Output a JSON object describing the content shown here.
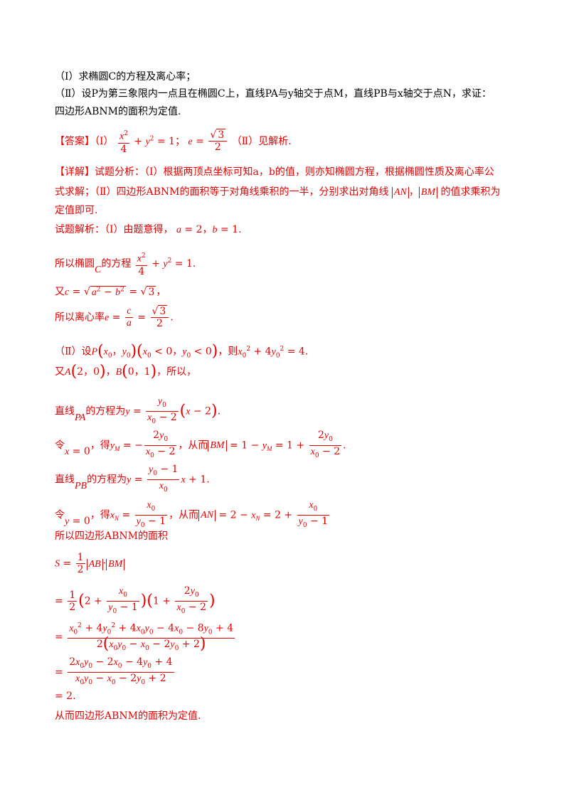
{
  "question": {
    "part1": "（Ⅰ）求椭圆C的方程及离心率；",
    "part2_line1": "（Ⅱ）设P为第三象限内一点且在椭圆C上，直线PA与y轴交于点M，直线PB与x轴交于点N，求证：",
    "part2_line2": "四边形ABNM的面积为定值."
  },
  "answer": {
    "tag": "【答案】",
    "text1": "（Ⅰ）",
    "text2": "；",
    "text3": "（Ⅱ）见解析."
  },
  "analysis": {
    "tag": "【详解】",
    "line1": "试题分析：（Ⅰ）根据两顶点坐标可知a，b的值，则亦知椭圆方程，根据椭圆性质及离心率公",
    "line2a": "式求解；（Ⅱ）四边形ABNM的面积等于对角线乘积的一半，分别求出对角线",
    "line2b": "的值求乘积为",
    "line3": "定值即可."
  },
  "solution": {
    "intro": "试题解析：（Ⅰ）由题意得，",
    "ellipse_label": "所以椭圆",
    "ellipse_label2": "的方程",
    "c_label": "又",
    "e_label": "所以离心率",
    "p2_label": "（Ⅱ）设",
    "p2_then": "，则",
    "ab_label": "又",
    "so": "，所以，",
    "pa_label": "直线",
    "pa_label2": "的方程为",
    "let1": "令",
    "get": "，得",
    "hence": "，从而",
    "pb_label": "直线",
    "pb_label2": "的方程为",
    "area_label": "所以四边形ABNM的面积",
    "conclusion": "从而四边形ABNM的面积为定值."
  }
}
